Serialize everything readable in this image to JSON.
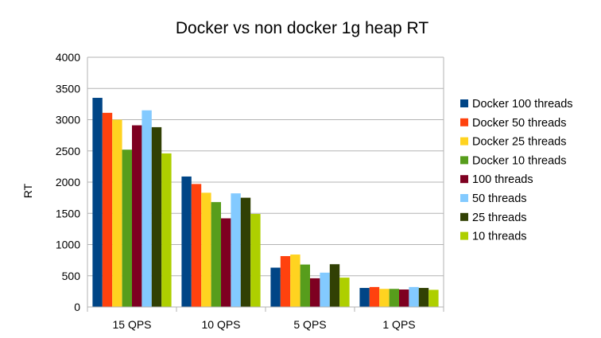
{
  "chart_data": {
    "type": "bar",
    "title": "Docker vs non docker 1g heap RT",
    "xlabel": "",
    "ylabel": "RT",
    "ylim": [
      0,
      4000
    ],
    "yticks": [
      0,
      500,
      1000,
      1500,
      2000,
      2500,
      3000,
      3500,
      4000
    ],
    "grid": true,
    "legend_position": "right",
    "categories": [
      "15 QPS",
      "10 QPS",
      "5 QPS",
      "1 QPS"
    ],
    "series": [
      {
        "name": "Docker 100 threads",
        "color": "#004586",
        "values": [
          3350,
          2090,
          630,
          305
        ]
      },
      {
        "name": "Docker 50 threads",
        "color": "#ff420e",
        "values": [
          3110,
          1970,
          815,
          320
        ]
      },
      {
        "name": "Docker 25 threads",
        "color": "#ffd320",
        "values": [
          3000,
          1830,
          840,
          290
        ]
      },
      {
        "name": "Docker 10 threads",
        "color": "#579d1c",
        "values": [
          2520,
          1680,
          680,
          290
        ]
      },
      {
        "name": "100 threads",
        "color": "#7e0021",
        "values": [
          2910,
          1420,
          460,
          280
        ]
      },
      {
        "name": "50 threads",
        "color": "#83caff",
        "values": [
          3150,
          1820,
          550,
          320
        ]
      },
      {
        "name": "25 threads",
        "color": "#314004",
        "values": [
          2880,
          1750,
          685,
          305
        ]
      },
      {
        "name": "10 threads",
        "color": "#aecf00",
        "values": [
          2460,
          1490,
          470,
          275
        ]
      }
    ]
  }
}
